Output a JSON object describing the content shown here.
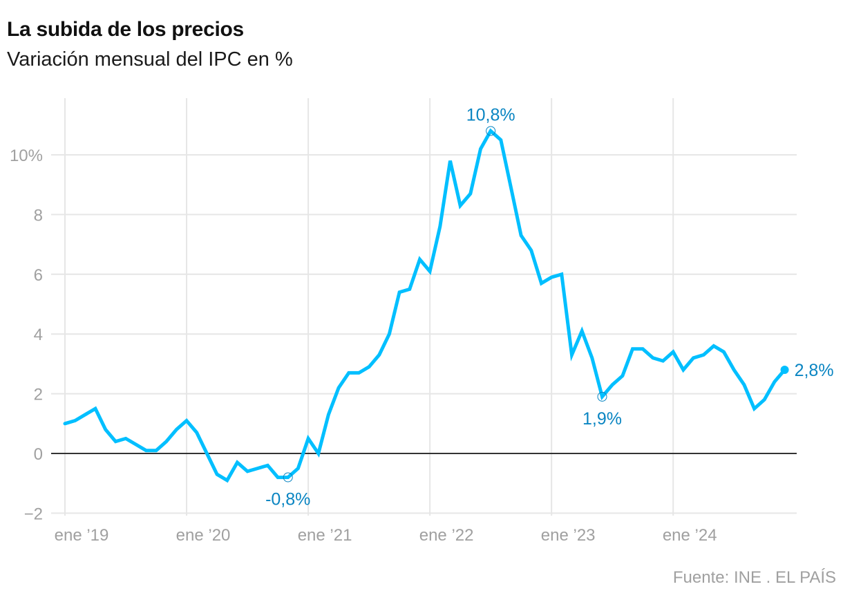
{
  "header": {
    "title": "La subida de los precios",
    "subtitle": "Variación mensual del IPC en %"
  },
  "footer": {
    "source": "Fuente: INE . EL PAÍS"
  },
  "colors": {
    "line": "#00bfff",
    "annotation": "#0a85c2",
    "grid": "#e6e6e6",
    "zero": "#333333",
    "tick": "#a0a0a0"
  },
  "chart_data": {
    "type": "line",
    "title": "La subida de los precios",
    "subtitle": "Variación mensual del IPC en %",
    "xlabel": "",
    "ylabel": "",
    "ylim": [
      -2,
      11.5
    ],
    "grid": true,
    "y_ticks": [
      {
        "value": -2,
        "label": "−2"
      },
      {
        "value": 0,
        "label": "0"
      },
      {
        "value": 2,
        "label": "2"
      },
      {
        "value": 4,
        "label": "4"
      },
      {
        "value": 6,
        "label": "6"
      },
      {
        "value": 8,
        "label": "8"
      },
      {
        "value": 10,
        "label": "10%"
      }
    ],
    "x_ticks": [
      {
        "index": 0,
        "label": "ene ’19"
      },
      {
        "index": 12,
        "label": "ene ’20"
      },
      {
        "index": 24,
        "label": "ene ’21"
      },
      {
        "index": 36,
        "label": "ene ’22"
      },
      {
        "index": 48,
        "label": "ene ’23"
      },
      {
        "index": 60,
        "label": "ene ’24"
      }
    ],
    "series": [
      {
        "name": "IPC",
        "start": "2019-01",
        "frequency": "monthly",
        "values": [
          1.0,
          1.1,
          1.3,
          1.5,
          0.8,
          0.4,
          0.5,
          0.3,
          0.1,
          0.1,
          0.4,
          0.8,
          1.1,
          0.7,
          0.0,
          -0.7,
          -0.9,
          -0.3,
          -0.6,
          -0.5,
          -0.4,
          -0.8,
          -0.8,
          -0.5,
          0.5,
          0.0,
          1.3,
          2.2,
          2.7,
          2.7,
          2.9,
          3.3,
          4.0,
          5.4,
          5.5,
          6.5,
          6.1,
          7.6,
          9.8,
          8.3,
          8.7,
          10.2,
          10.8,
          10.5,
          8.9,
          7.3,
          6.8,
          5.7,
          5.9,
          6.0,
          3.3,
          4.1,
          3.2,
          1.9,
          2.3,
          2.6,
          3.5,
          3.5,
          3.2,
          3.1,
          3.4,
          2.8,
          3.2,
          3.3,
          3.6,
          3.4,
          2.8,
          2.3,
          1.5,
          1.8,
          2.4,
          2.8
        ]
      }
    ],
    "annotations": [
      {
        "index": 22,
        "value": -0.8,
        "label": "-0,8%",
        "marker": "open-circle",
        "position": "below"
      },
      {
        "index": 42,
        "value": 10.8,
        "label": "10,8%",
        "marker": "open-circle",
        "position": "above"
      },
      {
        "index": 53,
        "value": 1.9,
        "label": "1,9%",
        "marker": "open-circle",
        "position": "below"
      },
      {
        "index": 71,
        "value": 2.8,
        "label": "2,8%",
        "marker": "filled-dot",
        "position": "right"
      }
    ]
  }
}
